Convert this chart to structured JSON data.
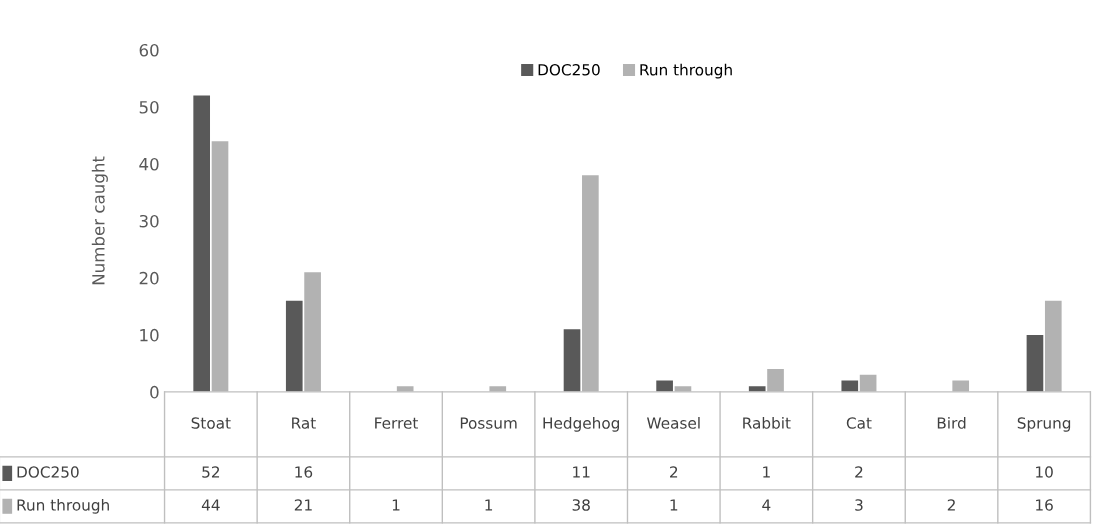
{
  "chart_data": {
    "type": "bar",
    "ylabel": "Number caught",
    "categories": [
      "Stoat",
      "Rat",
      "Ferret",
      "Possum",
      "Hedgehog",
      "Weasel",
      "Rabbit",
      "Cat",
      "Bird",
      "Sprung"
    ],
    "series": [
      {
        "name": "DOC250",
        "color": "#595959",
        "values": [
          52,
          16,
          null,
          null,
          11,
          2,
          1,
          2,
          null,
          10
        ]
      },
      {
        "name": "Run through",
        "color": "#b2b2b2",
        "values": [
          44,
          21,
          1,
          1,
          38,
          1,
          4,
          3,
          2,
          16
        ]
      }
    ],
    "ylim": [
      0,
      60
    ],
    "yticks": [
      0,
      10,
      20,
      30,
      40,
      50,
      60
    ],
    "grid": false,
    "legend": "top",
    "data_labels": true
  }
}
